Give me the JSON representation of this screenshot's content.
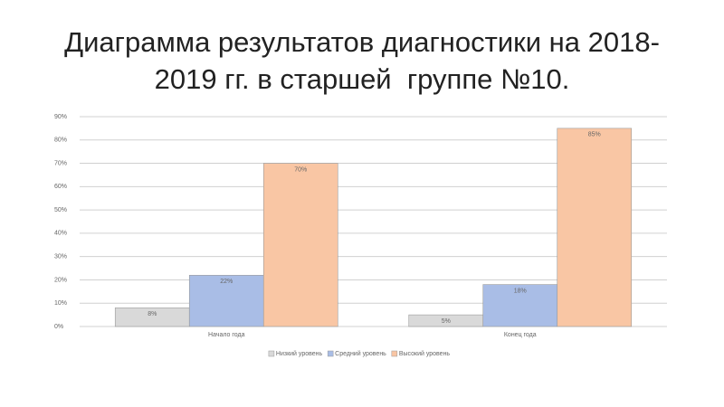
{
  "chart_data": {
    "type": "bar",
    "title": "Диаграмма результатов диагностики на 2018-2019 гг. в старшей  группе №10.",
    "categories": [
      "Начало года",
      "Конец года"
    ],
    "series": [
      {
        "name": "Низкий уровень",
        "color": "#d9d9d9",
        "values": [
          8,
          5
        ],
        "value_labels": [
          "8%",
          "5%"
        ]
      },
      {
        "name": "Средний уровень",
        "color": "#a9bde6",
        "values": [
          22,
          18
        ],
        "value_labels": [
          "22%",
          "18%"
        ]
      },
      {
        "name": "Высокий уровень",
        "color": "#f9c6a4",
        "values": [
          70,
          85
        ],
        "value_labels": [
          "70%",
          "85%"
        ]
      }
    ],
    "ylim": [
      0,
      90
    ],
    "yticks": [
      {
        "value": 0,
        "label": "0%"
      },
      {
        "value": 10,
        "label": "10%"
      },
      {
        "value": 20,
        "label": "20%"
      },
      {
        "value": 30,
        "label": "30%"
      },
      {
        "value": 40,
        "label": "40%"
      },
      {
        "value": 50,
        "label": "50%"
      },
      {
        "value": 60,
        "label": "60%"
      },
      {
        "value": 70,
        "label": "70%"
      },
      {
        "value": 80,
        "label": "80%"
      },
      {
        "value": 90,
        "label": "90%"
      }
    ],
    "grid": true,
    "legend": "bottom"
  }
}
